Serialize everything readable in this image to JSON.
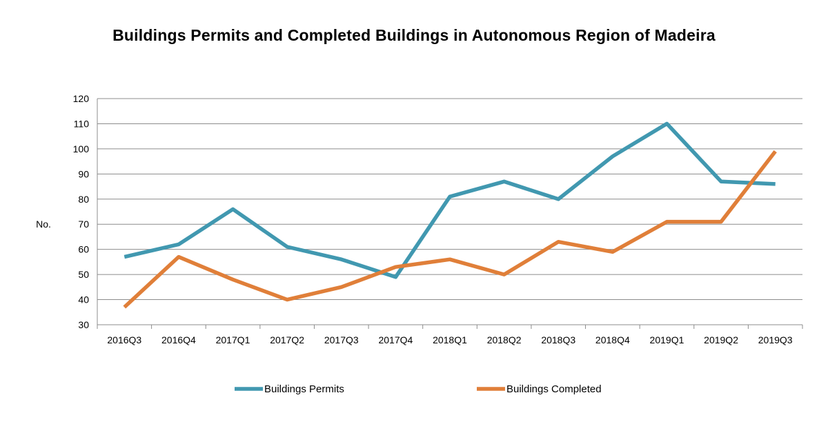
{
  "chart_data": {
    "type": "line",
    "title": "Buildings Permits and Completed Buildings in Autonomous Region of Madeira",
    "xlabel": "",
    "ylabel": "No.",
    "ylim": [
      30,
      120
    ],
    "yticks": [
      30,
      40,
      50,
      60,
      70,
      80,
      90,
      100,
      110,
      120
    ],
    "grid": true,
    "legend_position": "bottom",
    "categories": [
      "2016Q3",
      "2016Q4",
      "2017Q1",
      "2017Q2",
      "2017Q3",
      "2017Q4",
      "2018Q1",
      "2018Q2",
      "2018Q3",
      "2018Q4",
      "2019Q1",
      "2019Q2",
      "2019Q3"
    ],
    "series": [
      {
        "name": "Buildings Permits",
        "color": "#4198B0",
        "values": [
          57,
          62,
          76,
          61,
          56,
          49,
          81,
          87,
          80,
          97,
          110,
          87,
          86
        ]
      },
      {
        "name": "Buildings Completed",
        "color": "#E07F39",
        "values": [
          37,
          57,
          48,
          40,
          45,
          53,
          56,
          50,
          63,
          59,
          71,
          71,
          99
        ]
      }
    ]
  }
}
